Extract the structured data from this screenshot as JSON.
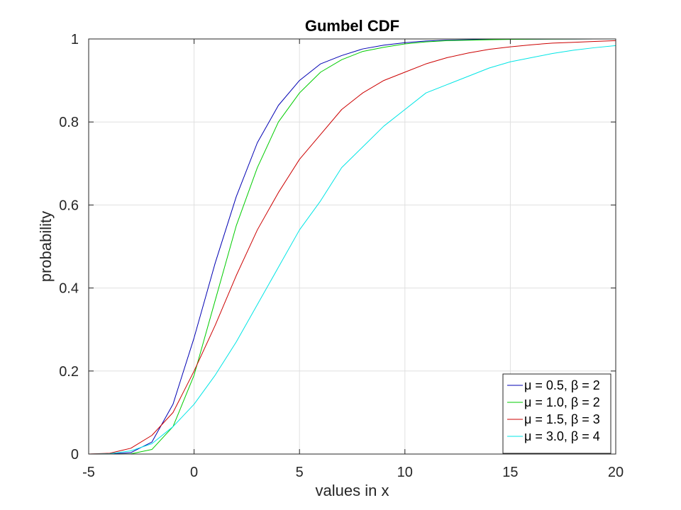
{
  "chart_data": {
    "type": "line",
    "title": "Gumbel CDF",
    "xlabel": "values in x",
    "ylabel": "probability",
    "xlim": [
      -5,
      20
    ],
    "ylim": [
      0,
      1
    ],
    "xticks": [
      -5,
      0,
      5,
      10,
      15,
      20
    ],
    "yticks": [
      0,
      0.2,
      0.4,
      0.6,
      0.8,
      1
    ],
    "xtick_labels": [
      "-5",
      "0",
      "5",
      "10",
      "15",
      "20"
    ],
    "ytick_labels": [
      "0",
      "0.2",
      "0.4",
      "0.6",
      "0.8",
      "1"
    ],
    "grid": true,
    "legend_position": "bottom-right",
    "x": [
      -5,
      -4,
      -3,
      -2,
      -1,
      0,
      1,
      2,
      3,
      4,
      5,
      6,
      7,
      8,
      9,
      10,
      11,
      12,
      13,
      14,
      15,
      16,
      17,
      18,
      19,
      20
    ],
    "series": [
      {
        "name": "μ = 0.5, β = 2",
        "color": "#0000b3",
        "values": [
          0,
          0.0003,
          0.0034,
          0.029,
          0.12,
          0.28,
          0.46,
          0.62,
          0.75,
          0.84,
          0.9,
          0.94,
          0.96,
          0.976,
          0.985,
          0.991,
          0.995,
          0.997,
          0.998,
          0.999,
          0.9993,
          0.9996,
          0.9997,
          0.9998,
          0.9999,
          1.0
        ]
      },
      {
        "name": "μ = 1.0, β = 2",
        "color": "#00cc00",
        "values": [
          0,
          0,
          0.0005,
          0.011,
          0.066,
          0.19,
          0.37,
          0.55,
          0.69,
          0.8,
          0.87,
          0.92,
          0.95,
          0.97,
          0.98,
          0.988,
          0.993,
          0.996,
          0.997,
          0.998,
          0.999,
          0.9994,
          0.9996,
          0.9998,
          0.9999,
          1.0
        ]
      },
      {
        "name": "μ = 1.5, β = 3",
        "color": "#cc0000",
        "values": [
          0,
          0.002,
          0.014,
          0.045,
          0.1,
          0.2,
          0.31,
          0.43,
          0.54,
          0.63,
          0.71,
          0.77,
          0.83,
          0.87,
          0.9,
          0.92,
          0.94,
          0.955,
          0.966,
          0.975,
          0.981,
          0.986,
          0.99,
          0.992,
          0.994,
          0.996
        ]
      },
      {
        "name": "μ = 3.0, β = 4",
        "color": "#00e5e5",
        "values": [
          0,
          0.0008,
          0.0077,
          0.025,
          0.066,
          0.12,
          0.19,
          0.27,
          0.36,
          0.45,
          0.54,
          0.61,
          0.69,
          0.74,
          0.79,
          0.83,
          0.87,
          0.89,
          0.91,
          0.93,
          0.945,
          0.955,
          0.965,
          0.973,
          0.979,
          0.984
        ]
      }
    ]
  }
}
